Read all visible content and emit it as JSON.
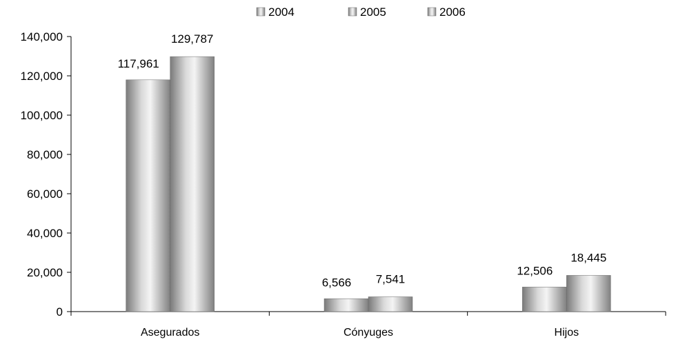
{
  "chart_data": {
    "type": "bar",
    "categories": [
      "Asegurados",
      "Cónyuges",
      "Hijos"
    ],
    "series": [
      {
        "name": "2004",
        "values": [
          null,
          null,
          null
        ]
      },
      {
        "name": "2005",
        "values": [
          117961,
          6566,
          12506
        ]
      },
      {
        "name": "2006",
        "values": [
          129787,
          7541,
          18445
        ]
      }
    ],
    "data_labels": [
      [
        "",
        "",
        ""
      ],
      [
        "117,961",
        "6,566",
        "12,506"
      ],
      [
        "129,787",
        "7,541",
        "18,445"
      ]
    ],
    "y_ticks": [
      "0",
      "20,000",
      "40,000",
      "60,000",
      "80,000",
      "100,000",
      "120,000",
      "140,000"
    ],
    "ylim": [
      0,
      140000
    ],
    "legend_position": "top-center",
    "grid": false,
    "bar_style": "gray cylindrical gradient"
  }
}
